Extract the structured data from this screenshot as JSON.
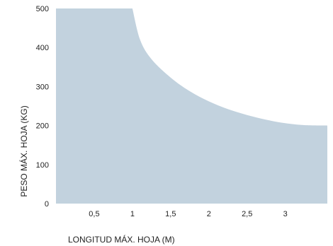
{
  "chart_data": {
    "type": "area",
    "title": "",
    "xlabel": "LONGITUD MÁX. HOJA (M)",
    "ylabel": "PESO MÁX. HOJA (KG)",
    "xlim": [
      0,
      3.55
    ],
    "ylim": [
      0,
      500
    ],
    "x_ticks": [
      0.5,
      1,
      1.5,
      2,
      2.5,
      3
    ],
    "x_tick_labels": [
      "0,5",
      "1",
      "1,5",
      "2",
      "2,5",
      "3"
    ],
    "y_ticks": [
      0,
      100,
      200,
      300,
      400,
      500
    ],
    "y_tick_labels": [
      "0",
      "100",
      "200",
      "300",
      "400",
      "500"
    ],
    "grid": false,
    "fill_color": "#c2d2de",
    "series": [
      {
        "x": [
          0,
          1.0,
          1.1,
          1.25,
          1.5,
          1.75,
          2.0,
          2.25,
          2.5,
          2.75,
          3.0,
          3.25,
          3.55
        ],
        "values": [
          500,
          500,
          420,
          370,
          323,
          288,
          262,
          242,
          227,
          215,
          206,
          201,
          200
        ]
      }
    ]
  }
}
